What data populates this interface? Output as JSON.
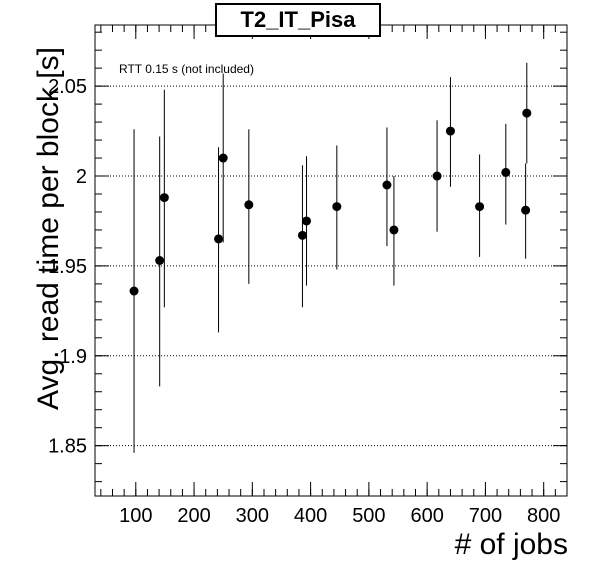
{
  "chart_data": {
    "type": "scatter",
    "title": "T2_IT_Pisa",
    "annotation": "RTT 0.15 s (not included)",
    "xlabel": "# of jobs",
    "ylabel": "Avg. read time per block [s]",
    "xlim": [
      30,
      840
    ],
    "ylim": [
      1.822,
      2.084
    ],
    "xticks": [
      100,
      200,
      300,
      400,
      500,
      600,
      700,
      800
    ],
    "yticks": [
      1.85,
      1.9,
      1.95,
      2,
      2.05
    ],
    "ytick_labels": [
      "1.85",
      "1.9",
      "1.95",
      "2",
      "2.05"
    ],
    "grid": "horizontal-dotted",
    "points": [
      {
        "x": 97,
        "y": 1.936,
        "ylow": 1.846,
        "yhigh": 2.026
      },
      {
        "x": 141,
        "y": 1.953,
        "ylow": 1.883,
        "yhigh": 2.022
      },
      {
        "x": 149,
        "y": 1.988,
        "ylow": 1.927,
        "yhigh": 2.048
      },
      {
        "x": 242,
        "y": 1.965,
        "ylow": 1.913,
        "yhigh": 2.016
      },
      {
        "x": 250,
        "y": 2.01,
        "ylow": 1.963,
        "yhigh": 2.057
      },
      {
        "x": 294,
        "y": 1.984,
        "ylow": 1.94,
        "yhigh": 2.026
      },
      {
        "x": 386,
        "y": 1.967,
        "ylow": 1.927,
        "yhigh": 2.006
      },
      {
        "x": 393,
        "y": 1.975,
        "ylow": 1.939,
        "yhigh": 2.011
      },
      {
        "x": 445,
        "y": 1.983,
        "ylow": 1.948,
        "yhigh": 2.017
      },
      {
        "x": 531,
        "y": 1.995,
        "ylow": 1.961,
        "yhigh": 2.027
      },
      {
        "x": 543,
        "y": 1.97,
        "ylow": 1.939,
        "yhigh": 2.0
      },
      {
        "x": 617,
        "y": 2.0,
        "ylow": 1.969,
        "yhigh": 2.031
      },
      {
        "x": 640,
        "y": 2.025,
        "ylow": 1.994,
        "yhigh": 2.055
      },
      {
        "x": 690,
        "y": 1.983,
        "ylow": 1.955,
        "yhigh": 2.012
      },
      {
        "x": 735,
        "y": 2.002,
        "ylow": 1.973,
        "yhigh": 2.029
      },
      {
        "x": 769,
        "y": 1.981,
        "ylow": 1.954,
        "yhigh": 2.007
      },
      {
        "x": 771,
        "y": 2.035,
        "ylow": 2.007,
        "yhigh": 2.063
      }
    ]
  }
}
